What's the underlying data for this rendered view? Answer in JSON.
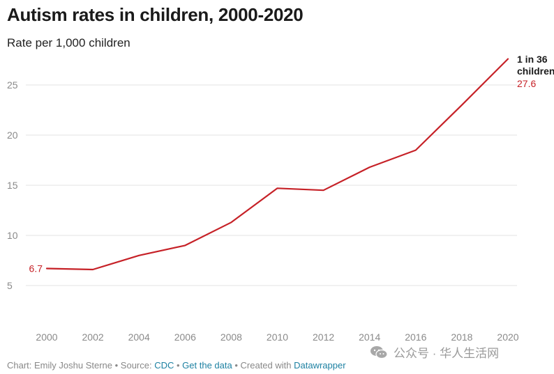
{
  "title": "Autism rates in children, 2000-2020",
  "subtitle": "Rate per 1,000 children",
  "colors": {
    "line": "#c62127",
    "grid": "#e3e3e3",
    "tick": "#8a8a8a",
    "link": "#1d81a2"
  },
  "chart_data": {
    "type": "line",
    "title": "Autism rates in children, 2000-2020",
    "ylabel": "Rate per 1,000 children",
    "xlabel": "",
    "x": [
      2000,
      2002,
      2004,
      2006,
      2008,
      2010,
      2012,
      2014,
      2016,
      2018,
      2020
    ],
    "series": [
      {
        "values": [
          6.7,
          6.6,
          8.0,
          9.0,
          11.3,
          14.7,
          14.5,
          16.8,
          18.5,
          23.0,
          27.6
        ]
      }
    ],
    "xlim": [
      2000,
      2020
    ],
    "ylim": [
      0,
      27.6
    ],
    "yticks": [
      5,
      10,
      15,
      20,
      25
    ],
    "xticks": [
      "2000",
      "2002",
      "2004",
      "2006",
      "2008",
      "2010",
      "2012",
      "2014",
      "2016",
      "2018",
      "2020"
    ],
    "grid": true,
    "annotations": {
      "start_value": "6.7",
      "end_line1": "1 in 36",
      "end_line2": "children",
      "end_value": "27.6"
    }
  },
  "footer": {
    "chart_credit": "Chart: Emily Joshu Sterne",
    "sep": " • ",
    "source_label": "Source: ",
    "source_link": "CDC",
    "get_data": "Get the data",
    "created_with": "Created with ",
    "tool_link": "Datawrapper"
  },
  "watermark": {
    "text": "公众号 · 华人生活网",
    "icon": "wechat-icon"
  }
}
